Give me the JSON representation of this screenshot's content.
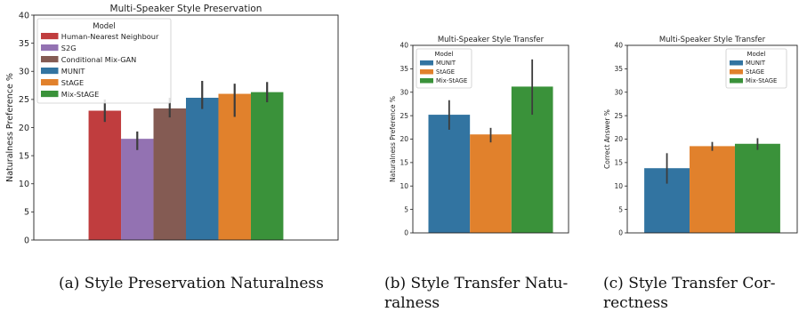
{
  "chart_data": [
    {
      "type": "bar",
      "title": "Multi-Speaker Style Preservation",
      "ylabel": "Naturalness Preference %",
      "xlabel": "",
      "ylim": [
        0,
        40
      ],
      "yticks": [
        0,
        5,
        10,
        15,
        20,
        25,
        30,
        35,
        40
      ],
      "grid": false,
      "legend": {
        "title": "Model",
        "placement": "top-left"
      },
      "series": [
        {
          "name": "Human-Nearest Neighbour",
          "value": 23.0,
          "ci": [
            21.0,
            25.0
          ],
          "color": "#c03d3e"
        },
        {
          "name": "S2G",
          "value": 18.0,
          "ci": [
            16.0,
            19.3
          ],
          "color": "#9372b2"
        },
        {
          "name": "Conditional Mix-GAN",
          "value": 23.4,
          "ci": [
            21.8,
            25.3
          ],
          "color": "#845b53"
        },
        {
          "name": "MUNIT",
          "value": 25.3,
          "ci": [
            23.3,
            28.3
          ],
          "color": "#3274a1"
        },
        {
          "name": "StAGE",
          "value": 26.0,
          "ci": [
            21.9,
            27.8
          ],
          "color": "#e1812c"
        },
        {
          "name": "Mix-StAGE",
          "value": 26.3,
          "ci": [
            24.5,
            28.1
          ],
          "color": "#3a923a"
        }
      ],
      "caption": "(a) Style Preservation Naturalness"
    },
    {
      "type": "bar",
      "title": "Multi-Speaker Style Transfer",
      "ylabel": "Naturalness Preference %",
      "xlabel": "",
      "ylim": [
        0,
        40
      ],
      "yticks": [
        0,
        5,
        10,
        15,
        20,
        25,
        30,
        35,
        40
      ],
      "grid": false,
      "legend": {
        "title": "Model",
        "placement": "top-left"
      },
      "series": [
        {
          "name": "MUNIT",
          "value": 25.2,
          "ci": [
            22.0,
            28.3
          ],
          "color": "#3274a1"
        },
        {
          "name": "StAGE",
          "value": 21.0,
          "ci": [
            19.3,
            22.4
          ],
          "color": "#e1812c"
        },
        {
          "name": "Mix-StAGE",
          "value": 31.2,
          "ci": [
            25.2,
            37.0
          ],
          "color": "#3a923a"
        }
      ],
      "caption_lines": [
        "(b) Style Transfer Natu-",
        "ralness"
      ]
    },
    {
      "type": "bar",
      "title": "Multi-Speaker Style Transfer",
      "ylabel": "Correct Answer %",
      "xlabel": "",
      "ylim": [
        0,
        40
      ],
      "yticks": [
        0,
        5,
        10,
        15,
        20,
        25,
        30,
        35,
        40
      ],
      "grid": false,
      "legend": {
        "title": "Model",
        "placement": "top-right"
      },
      "series": [
        {
          "name": "MUNIT",
          "value": 13.8,
          "ci": [
            10.5,
            17.0
          ],
          "color": "#3274a1"
        },
        {
          "name": "StAGE",
          "value": 18.5,
          "ci": [
            17.5,
            19.4
          ],
          "color": "#e1812c"
        },
        {
          "name": "Mix-StAGE",
          "value": 19.0,
          "ci": [
            17.7,
            20.2
          ],
          "color": "#3a923a"
        }
      ],
      "caption_lines": [
        "(c) Style Transfer Cor-",
        "rectness"
      ]
    }
  ]
}
